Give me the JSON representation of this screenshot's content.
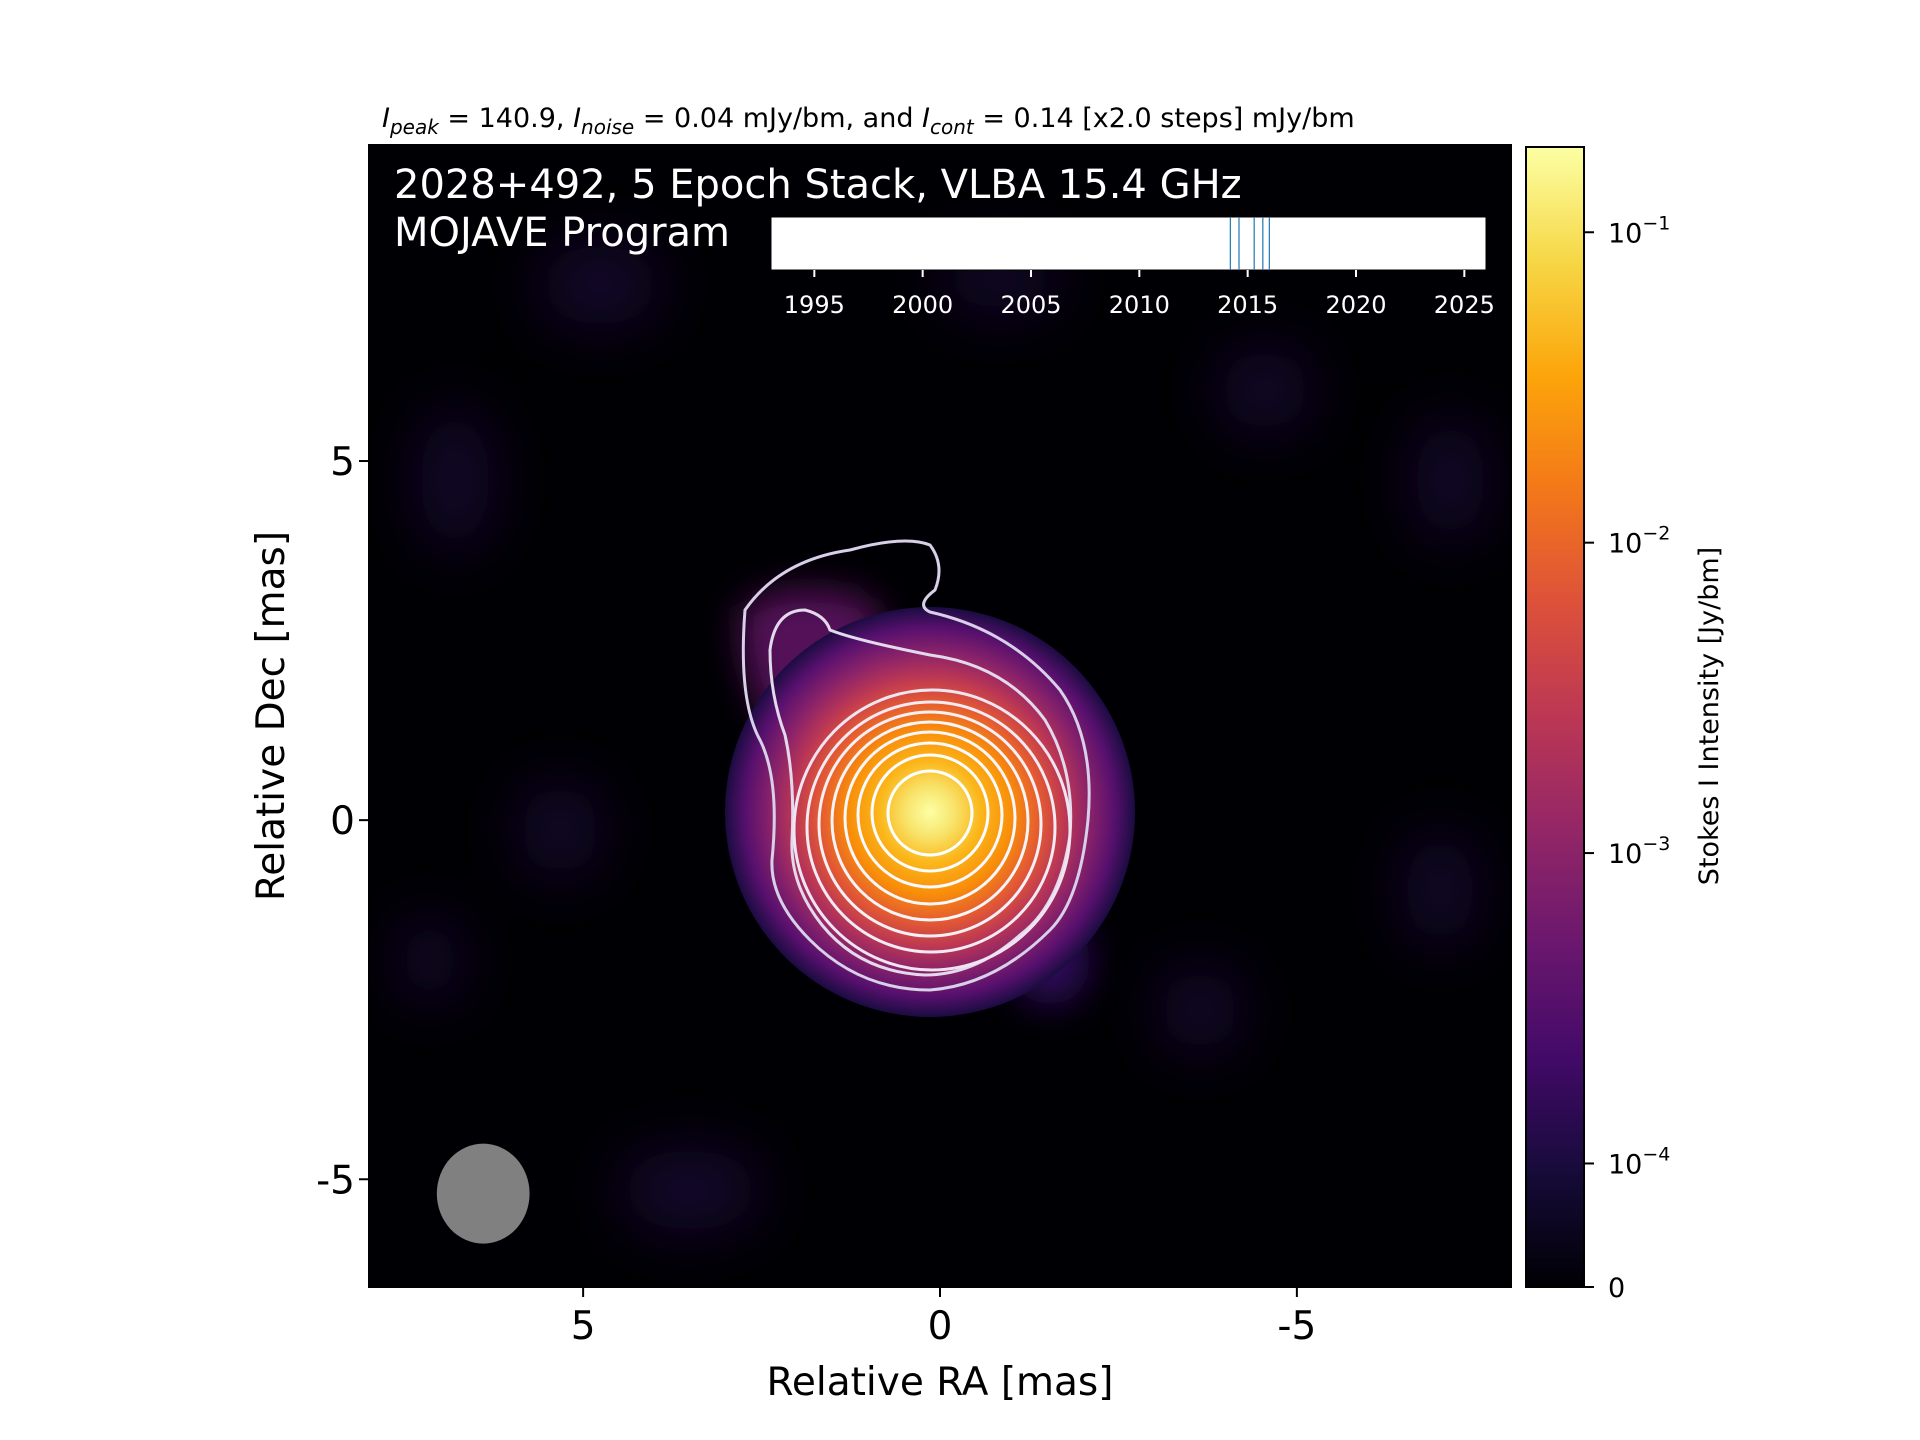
{
  "chart_data": {
    "type": "heatmap",
    "title": {
      "parts": [
        {
          "t": "I",
          "style": "italic"
        },
        {
          "t": "peak",
          "style": "italic-sub"
        },
        {
          "t": " = 140.9, ",
          "style": "normal"
        },
        {
          "t": "I",
          "style": "italic"
        },
        {
          "t": "noise",
          "style": "italic-sub"
        },
        {
          "t": " = 0.04 mJy/bm, and ",
          "style": "normal"
        },
        {
          "t": "I",
          "style": "italic"
        },
        {
          "t": "cont",
          "style": "italic-sub"
        },
        {
          "t": " = 0.14 [x2.0 steps] mJy/bm",
          "style": "normal"
        }
      ]
    },
    "annotation_line1": "2028+492, 5 Epoch Stack, VLBA 15.4 GHz",
    "annotation_line2": "MOJAVE Program",
    "xlabel": "Relative RA [mas]",
    "ylabel": "Relative Dec [mas]",
    "xlim": [
      8,
      -8
    ],
    "ylim": [
      -6.5,
      9.4
    ],
    "xticks": [
      {
        "v": 5,
        "label": "5"
      },
      {
        "v": 0,
        "label": "0"
      },
      {
        "v": -5,
        "label": "-5"
      }
    ],
    "yticks": [
      {
        "v": 5,
        "label": "5"
      },
      {
        "v": 0,
        "label": "0"
      },
      {
        "v": -5,
        "label": "-5"
      }
    ],
    "source_peak_position": [
      0,
      0
    ],
    "beam": {
      "ra": 6.4,
      "dec": -5.2,
      "major_mas": 1.4,
      "minor_mas": 1.3
    },
    "colormap": "inferno",
    "colorbar": {
      "label": "Stokes I Intensity [Jy/bm]",
      "scale": "log",
      "ticks": [
        {
          "v": 0.1,
          "base": "10",
          "exp": "−1"
        },
        {
          "v": 0.01,
          "base": "10",
          "exp": "−2"
        },
        {
          "v": 0.001,
          "base": "10",
          "exp": "−3"
        },
        {
          "v": 0.0001,
          "base": "10",
          "exp": "−4"
        },
        {
          "v": 0,
          "base": "0",
          "exp": ""
        }
      ]
    },
    "contour_levels_mjy": [
      0.14,
      0.28,
      0.56,
      1.12,
      2.24,
      4.48,
      8.96,
      17.92,
      35.84,
      71.68
    ],
    "epoch_timeline": {
      "xlim": [
        1993,
        2026
      ],
      "ticks": [
        1995,
        2000,
        2005,
        2010,
        2015,
        2020,
        2025
      ],
      "epochs": [
        2014.2,
        2014.6,
        2015.3,
        2015.7,
        2016.0
      ]
    }
  }
}
